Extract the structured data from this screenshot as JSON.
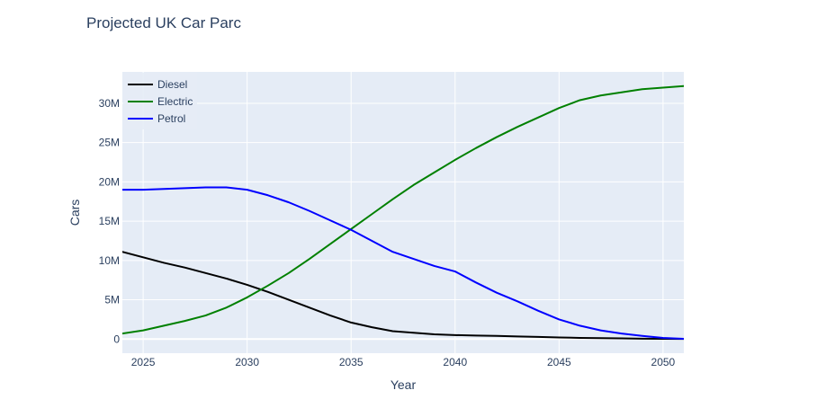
{
  "chart_data": {
    "type": "line",
    "title": "Projected UK Car Parc",
    "xlabel": "Year",
    "ylabel": "Cars",
    "xlim": [
      2024,
      2051
    ],
    "ylim": [
      -1800000,
      34000000
    ],
    "x_ticks": [
      2025,
      2030,
      2035,
      2040,
      2045,
      2050
    ],
    "y_ticks": [
      {
        "value": 0,
        "label": "0"
      },
      {
        "value": 5000000,
        "label": "5M"
      },
      {
        "value": 10000000,
        "label": "10M"
      },
      {
        "value": 15000000,
        "label": "15M"
      },
      {
        "value": 20000000,
        "label": "20M"
      },
      {
        "value": 25000000,
        "label": "25M"
      },
      {
        "value": 30000000,
        "label": "30M"
      }
    ],
    "grid": true,
    "legend_position": "top-left",
    "x": [
      2024,
      2025,
      2026,
      2027,
      2028,
      2029,
      2030,
      2031,
      2032,
      2033,
      2034,
      2035,
      2036,
      2037,
      2038,
      2039,
      2040,
      2041,
      2042,
      2043,
      2044,
      2045,
      2046,
      2047,
      2048,
      2049,
      2050,
      2051
    ],
    "series": [
      {
        "name": "Diesel",
        "color": "#000000",
        "values": [
          11100000,
          10400000,
          9700000,
          9100000,
          8400000,
          7700000,
          6900000,
          6000000,
          5000000,
          4000000,
          3000000,
          2100000,
          1500000,
          1000000,
          800000,
          600000,
          500000,
          450000,
          400000,
          330000,
          270000,
          200000,
          150000,
          110000,
          80000,
          50000,
          30000,
          10000
        ]
      },
      {
        "name": "Electric",
        "color": "#008000",
        "values": [
          700000,
          1100000,
          1700000,
          2300000,
          3000000,
          4000000,
          5300000,
          6800000,
          8400000,
          10200000,
          12100000,
          14000000,
          15900000,
          17800000,
          19600000,
          21200000,
          22800000,
          24300000,
          25700000,
          27000000,
          28200000,
          29400000,
          30400000,
          31000000,
          31400000,
          31800000,
          32000000,
          32200000
        ]
      },
      {
        "name": "Petrol",
        "color": "#0000ff",
        "values": [
          19000000,
          19000000,
          19100000,
          19200000,
          19300000,
          19300000,
          19000000,
          18300000,
          17400000,
          16300000,
          15100000,
          13900000,
          12500000,
          11100000,
          10200000,
          9300000,
          8600000,
          7200000,
          5900000,
          4800000,
          3600000,
          2500000,
          1700000,
          1100000,
          700000,
          400000,
          150000,
          30000
        ]
      }
    ]
  }
}
